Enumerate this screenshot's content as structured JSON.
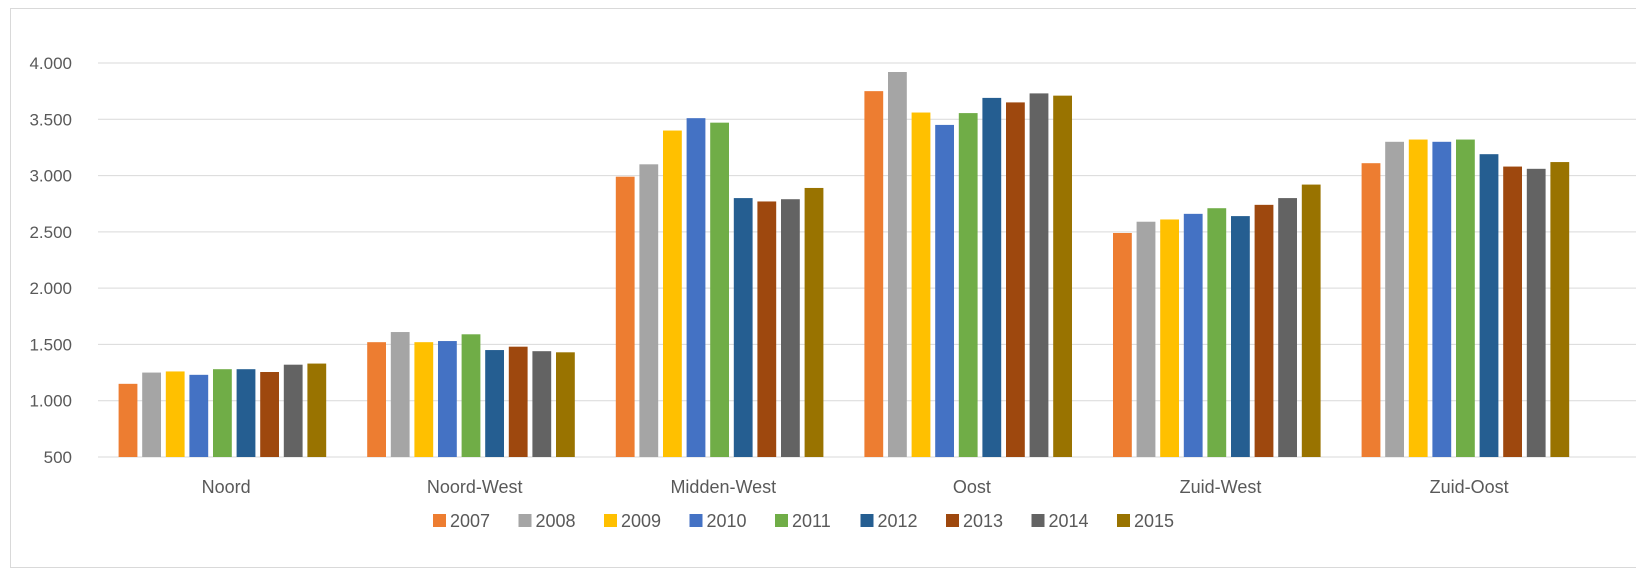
{
  "chart_data": {
    "type": "bar",
    "categories": [
      "Noord",
      "Noord-West",
      "Midden-West",
      "Oost",
      "Zuid-West",
      "Zuid-Oost"
    ],
    "series": [
      {
        "name": "2007",
        "color": "#ED7D31",
        "values": [
          1150,
          1520,
          2990,
          3750,
          2490,
          3110
        ]
      },
      {
        "name": "2008",
        "color": "#A5A5A5",
        "values": [
          1250,
          1610,
          3100,
          3920,
          2590,
          3300
        ]
      },
      {
        "name": "2009",
        "color": "#FFC000",
        "values": [
          1260,
          1520,
          3400,
          3560,
          2610,
          3320
        ]
      },
      {
        "name": "2010",
        "color": "#4472C4",
        "values": [
          1230,
          1530,
          3510,
          3450,
          2660,
          3300
        ]
      },
      {
        "name": "2011",
        "color": "#70AD47",
        "values": [
          1280,
          1590,
          3470,
          3555,
          2710,
          3320
        ]
      },
      {
        "name": "2012",
        "color": "#255E91",
        "values": [
          1280,
          1450,
          2800,
          3690,
          2640,
          3190
        ]
      },
      {
        "name": "2013",
        "color": "#9E480E",
        "values": [
          1255,
          1480,
          2770,
          3650,
          2740,
          3080
        ]
      },
      {
        "name": "2014",
        "color": "#636363",
        "values": [
          1320,
          1440,
          2790,
          3730,
          2800,
          3060
        ]
      },
      {
        "name": "2015",
        "color": "#997300",
        "values": [
          1330,
          1430,
          2890,
          3710,
          2920,
          3120
        ]
      }
    ],
    "y_ticks": [
      "500",
      "1.000",
      "1.500",
      "2.000",
      "2.500",
      "3.000",
      "3.500",
      "4.000"
    ],
    "y_tick_values": [
      500,
      1000,
      1500,
      2000,
      2500,
      3000,
      3500,
      4000
    ],
    "ylim": [
      500,
      4000
    ],
    "grid": true,
    "legend_position": "bottom",
    "gridline_color": "#d9d9d9"
  }
}
